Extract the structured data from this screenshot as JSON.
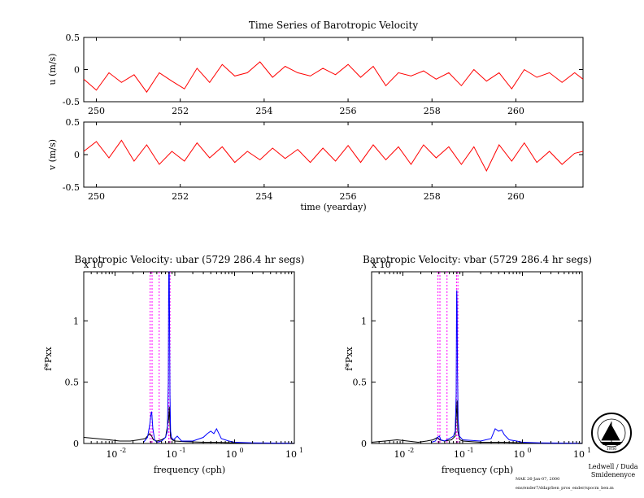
{
  "chart_data": [
    {
      "type": "line",
      "title": "Time Series of Barotropic Velocity",
      "ylabel": "u (m/s)",
      "xlabel": "",
      "xlim": [
        249.7,
        261.6
      ],
      "ylim": [
        -0.5,
        0.5
      ],
      "xticks": [
        250,
        252,
        254,
        256,
        258,
        260
      ],
      "yticks": [
        -0.5,
        0,
        0.5
      ],
      "ytick_labels": [
        "-0.5",
        "0",
        "0.5"
      ],
      "series": [
        {
          "color": "#ff0000",
          "x": [
            249.7,
            250.0,
            250.3,
            250.6,
            250.9,
            251.2,
            251.5,
            251.8,
            252.1,
            252.4,
            252.7,
            253.0,
            253.3,
            253.6,
            253.9,
            254.2,
            254.5,
            254.8,
            255.1,
            255.4,
            255.7,
            256.0,
            256.3,
            256.6,
            256.9,
            257.2,
            257.5,
            257.8,
            258.1,
            258.4,
            258.7,
            259.0,
            259.3,
            259.6,
            259.9,
            260.2,
            260.5,
            260.8,
            261.1,
            261.4,
            261.6
          ],
          "values": [
            -0.15,
            -0.32,
            -0.05,
            -0.2,
            -0.08,
            -0.35,
            -0.05,
            -0.18,
            -0.3,
            0.02,
            -0.2,
            0.08,
            -0.1,
            -0.05,
            0.12,
            -0.12,
            0.05,
            -0.05,
            -0.1,
            0.02,
            -0.08,
            0.08,
            -0.12,
            0.05,
            -0.25,
            -0.05,
            -0.1,
            -0.02,
            -0.15,
            -0.05,
            -0.25,
            0.0,
            -0.18,
            -0.05,
            -0.3,
            0.0,
            -0.12,
            -0.05,
            -0.2,
            -0.05,
            -0.15
          ]
        }
      ]
    },
    {
      "type": "line",
      "title": "",
      "ylabel": "v (m/s)",
      "xlabel": "time (yearday)",
      "xlim": [
        249.7,
        261.6
      ],
      "ylim": [
        -0.5,
        0.5
      ],
      "xticks": [
        250,
        252,
        254,
        256,
        258,
        260
      ],
      "yticks": [
        -0.5,
        0,
        0.5
      ],
      "ytick_labels": [
        "-0.5",
        "0",
        "0.5"
      ],
      "series": [
        {
          "color": "#ff0000",
          "x": [
            249.7,
            250.0,
            250.3,
            250.6,
            250.9,
            251.2,
            251.5,
            251.8,
            252.1,
            252.4,
            252.7,
            253.0,
            253.3,
            253.6,
            253.9,
            254.2,
            254.5,
            254.8,
            255.1,
            255.4,
            255.7,
            256.0,
            256.3,
            256.6,
            256.9,
            257.2,
            257.5,
            257.8,
            258.1,
            258.4,
            258.7,
            259.0,
            259.3,
            259.6,
            259.9,
            260.2,
            260.5,
            260.8,
            261.1,
            261.4,
            261.6
          ],
          "values": [
            0.05,
            0.2,
            -0.05,
            0.22,
            -0.1,
            0.15,
            -0.15,
            0.05,
            -0.1,
            0.18,
            -0.05,
            0.12,
            -0.12,
            0.05,
            -0.08,
            0.1,
            -0.06,
            0.08,
            -0.12,
            0.1,
            -0.1,
            0.14,
            -0.12,
            0.15,
            -0.08,
            0.12,
            -0.15,
            0.15,
            -0.05,
            0.12,
            -0.15,
            0.12,
            -0.25,
            0.15,
            -0.1,
            0.18,
            -0.12,
            0.05,
            -0.15,
            0.02,
            0.05
          ]
        }
      ]
    },
    {
      "type": "line",
      "title": "Barotropic Velocity: ubar (5729 286.4 hr segs)",
      "ylabel": "f*Pxx",
      "xlabel": "frequency (cph)",
      "scale_label": "x 10",
      "xscale": "log",
      "xlim": [
        0.003,
        10
      ],
      "ylim": [
        0,
        1.4
      ],
      "xticks": [
        0.01,
        0.1,
        1,
        10
      ],
      "xtick_bases": [
        "10",
        "10",
        "10",
        "10"
      ],
      "xtick_exps": [
        "-2",
        "-1",
        "0",
        "1"
      ],
      "yticks": [
        0,
        0.5,
        1
      ],
      "ytick_labels": [
        "0",
        "0.5",
        "1"
      ],
      "reference_lines": {
        "color": "#ff00ff",
        "x": [
          0.0387,
          0.0417,
          0.0548,
          0.0789,
          0.0833
        ]
      },
      "series": [
        {
          "name": "",
          "color": "#000000",
          "x": [
            0.003,
            0.005,
            0.008,
            0.012,
            0.018,
            0.025,
            0.032,
            0.038,
            0.041,
            0.044,
            0.05,
            0.06,
            0.07,
            0.079,
            0.081,
            0.083,
            0.085,
            0.09,
            0.1,
            0.15,
            0.3,
            0.5,
            1,
            2,
            5,
            10
          ],
          "values": [
            0.05,
            0.04,
            0.03,
            0.02,
            0.02,
            0.03,
            0.04,
            0.08,
            0.06,
            0.03,
            0.02,
            0.03,
            0.05,
            0.2,
            0.3,
            0.15,
            0.05,
            0.03,
            0.02,
            0.015,
            0.01,
            0.01,
            0.005,
            0.003,
            0.002,
            0.001
          ]
        },
        {
          "name": "",
          "color": "#0000ff",
          "x": [
            0.03,
            0.035,
            0.038,
            0.04,
            0.041,
            0.043,
            0.046,
            0.05,
            0.06,
            0.07,
            0.075,
            0.078,
            0.079,
            0.0795,
            0.08,
            0.081,
            0.082,
            0.083,
            0.085,
            0.088,
            0.095,
            0.11,
            0.13,
            0.2,
            0.3,
            0.35,
            0.4,
            0.45,
            0.5,
            0.6,
            0.8,
            1,
            2,
            5,
            10
          ],
          "values": [
            0.01,
            0.05,
            0.15,
            0.24,
            0.26,
            0.12,
            0.03,
            0.01,
            0.02,
            0.05,
            0.1,
            0.5,
            1.2,
            1.4,
            1.4,
            1.4,
            0.9,
            0.4,
            0.1,
            0.05,
            0.03,
            0.06,
            0.02,
            0.02,
            0.05,
            0.08,
            0.1,
            0.08,
            0.12,
            0.04,
            0.02,
            0.01,
            0.005,
            0.003,
            0.001
          ]
        }
      ]
    },
    {
      "type": "line",
      "title": "Barotropic Velocity: vbar (5729 286.4 hr segs)",
      "ylabel": "f*Pxx",
      "xlabel": "frequency (cph)",
      "scale_label": "x 10",
      "xscale": "log",
      "xlim": [
        0.003,
        10
      ],
      "ylim": [
        0,
        1.4
      ],
      "xticks": [
        0.01,
        0.1,
        1,
        10
      ],
      "xtick_bases": [
        "10",
        "10",
        "10",
        "10"
      ],
      "xtick_exps": [
        "-2",
        "-1",
        "0",
        "1"
      ],
      "yticks": [
        0,
        0.5,
        1
      ],
      "ytick_labels": [
        "0",
        "0.5",
        "1"
      ],
      "reference_lines": {
        "color": "#ff00ff",
        "x": [
          0.0387,
          0.0417,
          0.0548,
          0.0789,
          0.0833
        ]
      },
      "series": [
        {
          "name": "",
          "color": "#000000",
          "x": [
            0.003,
            0.005,
            0.008,
            0.012,
            0.018,
            0.025,
            0.032,
            0.038,
            0.041,
            0.05,
            0.065,
            0.075,
            0.079,
            0.081,
            0.083,
            0.09,
            0.1,
            0.2,
            0.5,
            1,
            2,
            5,
            10
          ],
          "values": [
            0.01,
            0.02,
            0.03,
            0.02,
            0.01,
            0.02,
            0.03,
            0.05,
            0.03,
            0.02,
            0.03,
            0.06,
            0.25,
            0.35,
            0.1,
            0.03,
            0.02,
            0.01,
            0.01,
            0.005,
            0.003,
            0.002,
            0.001
          ]
        },
        {
          "name": "",
          "color": "#0000ff",
          "x": [
            0.03,
            0.035,
            0.038,
            0.041,
            0.043,
            0.05,
            0.06,
            0.07,
            0.075,
            0.078,
            0.079,
            0.0795,
            0.08,
            0.081,
            0.082,
            0.084,
            0.088,
            0.1,
            0.2,
            0.3,
            0.35,
            0.4,
            0.45,
            0.5,
            0.6,
            0.8,
            1,
            2,
            5,
            10
          ],
          "values": [
            0.01,
            0.02,
            0.05,
            0.06,
            0.03,
            0.02,
            0.04,
            0.06,
            0.1,
            0.4,
            1.0,
            1.22,
            1.25,
            1.1,
            0.6,
            0.2,
            0.06,
            0.03,
            0.02,
            0.04,
            0.12,
            0.1,
            0.11,
            0.07,
            0.03,
            0.02,
            0.01,
            0.005,
            0.003,
            0.001
          ]
        }
      ]
    }
  ],
  "credits": {
    "authors": "Ledwell / Duda",
    "group": "Smidenenyce",
    "author_date": "MAK 26-Jan-07, 2000",
    "file_path": "ens/ender7/ddap/ben_pros_ender/spocm_ben.m",
    "seal_text": "WOODS HOLE OCEANOGRAPHIC INSTITUTION",
    "seal_year": "1930"
  }
}
